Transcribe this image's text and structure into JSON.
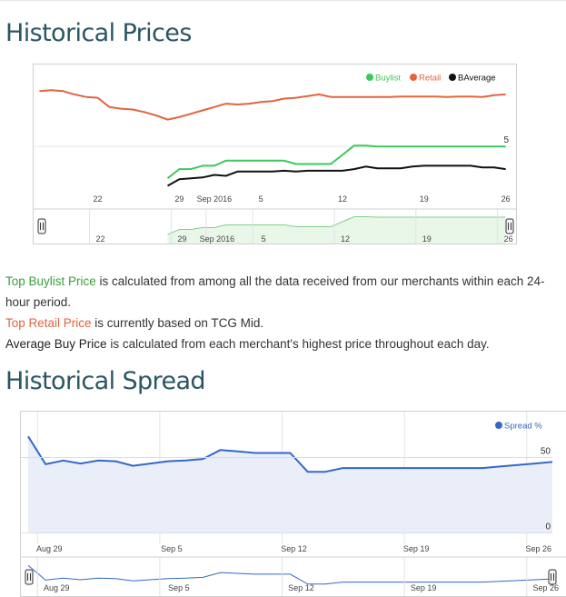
{
  "headings": {
    "prices": "Historical Prices",
    "spread": "Historical Spread"
  },
  "descriptions": {
    "buylist_term": "Top Buylist Price",
    "buylist_text": " is calculated from among all the data received from our merchants within each 24-hour period.",
    "retail_term": "Top Retail Price",
    "retail_text": " is currently based on TCG Mid.",
    "average_term": "Average Buy Price",
    "average_text": " is calculated from each merchant's highest price throughout each day."
  },
  "colors": {
    "buylist": "#3cc85a",
    "retail": "#e2643f",
    "average": "#111111",
    "spread": "#3468c8",
    "navigator_fill": "#e9f7e9",
    "spread_fill": "#eaeef8",
    "heading": "#2a5664"
  },
  "chart_data": [
    {
      "type": "line",
      "x_ticks": [
        {
          "day": 22,
          "label": "22"
        },
        {
          "day": 29,
          "label": "29"
        },
        {
          "day": 32,
          "label": "Sep 2016"
        },
        {
          "day": 36,
          "label": "5"
        },
        {
          "day": 43,
          "label": "12"
        },
        {
          "day": 50,
          "label": "19"
        },
        {
          "day": 57,
          "label": "26"
        }
      ],
      "y_ticks": [
        {
          "value": 5,
          "label": "5"
        }
      ],
      "ylim": [
        2.3,
        8.8
      ],
      "x_range": [
        16.5,
        57.5
      ],
      "legend": {
        "position": "top-right"
      },
      "series": [
        {
          "name": "Buylist",
          "color_key": "buylist",
          "points": [
            [
              28,
              3.1
            ],
            [
              29,
              3.65
            ],
            [
              30,
              3.65
            ],
            [
              31,
              3.85
            ],
            [
              32,
              3.85
            ],
            [
              33,
              4.15
            ],
            [
              34,
              4.15
            ],
            [
              35,
              4.15
            ],
            [
              36,
              4.15
            ],
            [
              37,
              4.15
            ],
            [
              38,
              4.15
            ],
            [
              39,
              3.95
            ],
            [
              40,
              3.95
            ],
            [
              41,
              3.95
            ],
            [
              42,
              3.95
            ],
            [
              43,
              4.5
            ],
            [
              44,
              5.05
            ],
            [
              45,
              5.05
            ],
            [
              46,
              5.0
            ],
            [
              47,
              5.0
            ],
            [
              48,
              5.0
            ],
            [
              49,
              5.0
            ],
            [
              50,
              5.0
            ],
            [
              51,
              5.0
            ],
            [
              52,
              5.0
            ],
            [
              53,
              5.0
            ],
            [
              54,
              5.0
            ],
            [
              55,
              5.0
            ],
            [
              56,
              5.0
            ],
            [
              57,
              5.0
            ]
          ]
        },
        {
          "name": "Retail",
          "color_key": "retail",
          "points": [
            [
              17,
              8.3
            ],
            [
              18,
              8.35
            ],
            [
              19,
              8.3
            ],
            [
              20,
              8.1
            ],
            [
              21,
              7.95
            ],
            [
              22,
              7.9
            ],
            [
              23,
              7.35
            ],
            [
              24,
              7.25
            ],
            [
              25,
              7.2
            ],
            [
              26,
              7.05
            ],
            [
              27,
              6.85
            ],
            [
              28,
              6.6
            ],
            [
              29,
              6.75
            ],
            [
              30,
              6.95
            ],
            [
              31,
              7.15
            ],
            [
              32,
              7.35
            ],
            [
              33,
              7.55
            ],
            [
              34,
              7.5
            ],
            [
              35,
              7.55
            ],
            [
              36,
              7.65
            ],
            [
              37,
              7.7
            ],
            [
              38,
              7.85
            ],
            [
              39,
              7.9
            ],
            [
              40,
              8.0
            ],
            [
              41,
              8.1
            ],
            [
              42,
              7.95
            ],
            [
              43,
              7.95
            ],
            [
              44,
              7.95
            ],
            [
              45,
              7.95
            ],
            [
              46,
              7.95
            ],
            [
              47,
              7.95
            ],
            [
              48,
              7.97
            ],
            [
              49,
              7.97
            ],
            [
              50,
              7.97
            ],
            [
              51,
              7.97
            ],
            [
              52,
              7.95
            ],
            [
              53,
              7.97
            ],
            [
              54,
              7.97
            ],
            [
              55,
              7.95
            ],
            [
              56,
              8.05
            ],
            [
              57,
              8.1
            ]
          ]
        },
        {
          "name": "BAverage",
          "color_key": "average",
          "points": [
            [
              28,
              2.65
            ],
            [
              29,
              3.05
            ],
            [
              30,
              3.1
            ],
            [
              31,
              3.15
            ],
            [
              32,
              3.3
            ],
            [
              33,
              3.25
            ],
            [
              34,
              3.5
            ],
            [
              35,
              3.5
            ],
            [
              36,
              3.5
            ],
            [
              37,
              3.5
            ],
            [
              38,
              3.55
            ],
            [
              39,
              3.5
            ],
            [
              40,
              3.55
            ],
            [
              41,
              3.55
            ],
            [
              42,
              3.55
            ],
            [
              43,
              3.55
            ],
            [
              44,
              3.65
            ],
            [
              45,
              3.8
            ],
            [
              46,
              3.7
            ],
            [
              47,
              3.7
            ],
            [
              48,
              3.7
            ],
            [
              49,
              3.8
            ],
            [
              50,
              3.85
            ],
            [
              51,
              3.85
            ],
            [
              52,
              3.85
            ],
            [
              53,
              3.85
            ],
            [
              54,
              3.85
            ],
            [
              55,
              3.75
            ],
            [
              56,
              3.75
            ],
            [
              57,
              3.65
            ]
          ]
        }
      ]
    },
    {
      "type": "area",
      "x_ticks": [
        {
          "day": 29,
          "label": "Aug 29"
        },
        {
          "day": 36,
          "label": "Sep 5"
        },
        {
          "day": 43,
          "label": "Sep 12"
        },
        {
          "day": 50,
          "label": "Sep 19"
        },
        {
          "day": 57,
          "label": "Sep 26"
        }
      ],
      "y_ticks": [
        {
          "value": 0,
          "label": "0"
        },
        {
          "value": 50,
          "label": "50"
        }
      ],
      "ylim": [
        -4,
        72
      ],
      "x_range": [
        28,
        58
      ],
      "legend": {
        "position": "top-right"
      },
      "series": [
        {
          "name": "Spread %",
          "color_key": "spread",
          "points": [
            [
              28,
              64
            ],
            [
              29,
              45.5
            ],
            [
              30,
              48
            ],
            [
              31,
              46
            ],
            [
              32,
              48
            ],
            [
              33,
              47.5
            ],
            [
              34,
              44.5
            ],
            [
              35,
              46
            ],
            [
              36,
              47.5
            ],
            [
              37,
              48
            ],
            [
              38,
              49
            ],
            [
              39,
              55
            ],
            [
              40,
              54
            ],
            [
              41,
              53
            ],
            [
              42,
              53
            ],
            [
              43,
              53
            ],
            [
              44,
              40.5
            ],
            [
              45,
              40.5
            ],
            [
              46,
              43
            ],
            [
              47,
              43
            ],
            [
              48,
              43
            ],
            [
              49,
              43
            ],
            [
              50,
              43
            ],
            [
              51,
              43
            ],
            [
              52,
              43
            ],
            [
              53,
              43
            ],
            [
              54,
              43
            ],
            [
              55,
              44
            ],
            [
              56,
              45
            ],
            [
              57,
              46
            ],
            [
              58,
              47
            ]
          ]
        }
      ]
    }
  ]
}
